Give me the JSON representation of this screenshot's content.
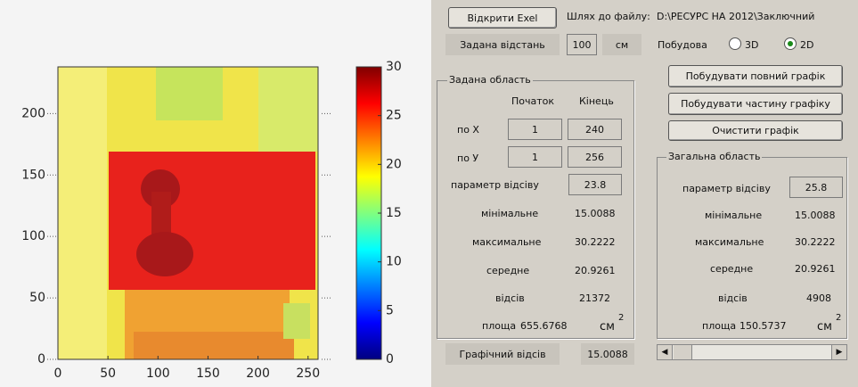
{
  "toolbar": {
    "open_button": "Відкрити Exel",
    "path_label": "Шлях до файлу:",
    "path": "D:\\РЕСУРС НА 2012\\Заключний"
  },
  "distance": {
    "label": "Задана відстань",
    "value": 100,
    "unit": "см"
  },
  "build": {
    "label": "Побудова",
    "options": [
      "3D",
      "2D"
    ],
    "selected": 1
  },
  "buttons": [
    "Побудувати повний графік",
    "Побудувати частину графіку",
    "Очистити графік"
  ],
  "region": {
    "title": "Задана область",
    "start_label": "Початок",
    "end_label": "Кінець",
    "x_label": "по Х",
    "x_start": 1,
    "x_end": 240,
    "y_label": "по У",
    "y_start": 1,
    "y_end": 256,
    "threshold_label": "параметр відсіву",
    "threshold": 23.8,
    "min_label": "мінімальне",
    "min": 15.0088,
    "max_label": "максимальне",
    "max": 30.2222,
    "mean_label": "середне",
    "mean": 20.9261,
    "count_label": "відсів",
    "count": 21372,
    "area_label": "площа",
    "area": 655.6768,
    "area_unit": "см",
    "area_power": 2
  },
  "graphic": {
    "label": "Графічний відсів",
    "value": 15.0088
  },
  "total": {
    "title": "Загальна область",
    "threshold_label": "параметр відсіву",
    "threshold": 25.8,
    "min_label": "мінімальне",
    "min": 15.0088,
    "max_label": "максимальне",
    "max": 30.2222,
    "mean_label": "середне",
    "mean": 20.9261,
    "count_label": "відсів",
    "count": 4908,
    "area_label": "площа",
    "area": 150.5737,
    "area_unit": "см",
    "area_power": 2
  },
  "plot": {
    "xlim": [
      0,
      260
    ],
    "ylim": [
      0,
      238
    ],
    "xticks": [
      0,
      50,
      100,
      150,
      200,
      250
    ],
    "yticks": [
      0,
      50,
      100,
      150,
      200
    ],
    "colorbar": {
      "lim": [
        0,
        30
      ],
      "ticks": [
        0,
        5,
        10,
        15,
        20,
        25,
        30
      ]
    }
  }
}
